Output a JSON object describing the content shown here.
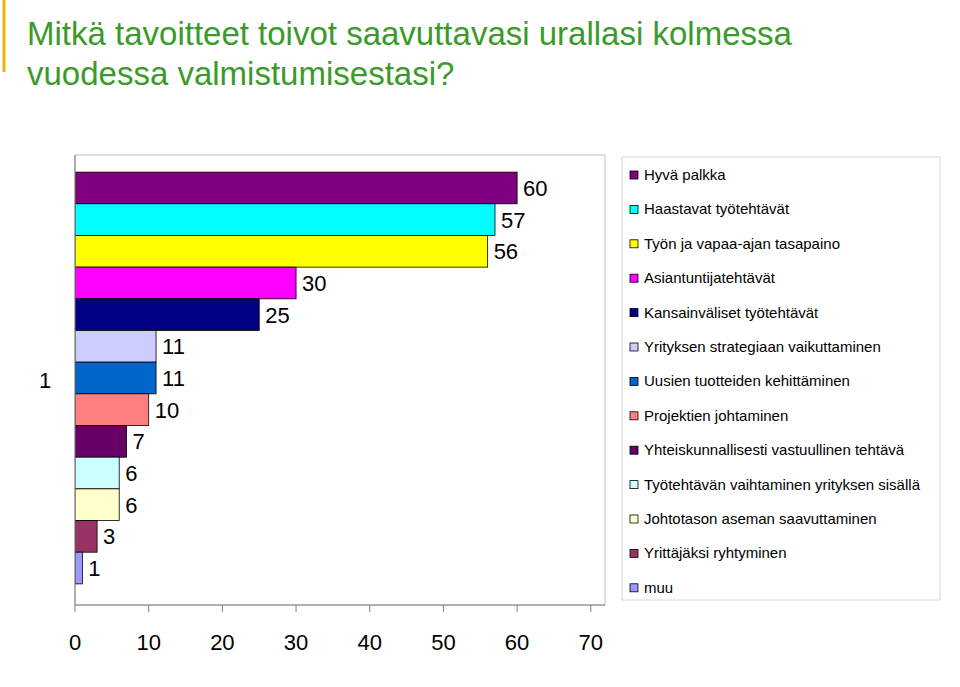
{
  "chart_data": {
    "type": "bar",
    "orientation": "horizontal",
    "title": "Mitkä tavoitteet toivot saavuttavasi urallasi kolmessa vuodessa valmistumisestasi?",
    "categories": [
      "1"
    ],
    "series": [
      {
        "name": "Hyvä palkka",
        "color": "#800080",
        "values": [
          60
        ]
      },
      {
        "name": "Haastavat työtehtävät",
        "color": "#00ffff",
        "values": [
          57
        ]
      },
      {
        "name": "Työn ja vapaa-ajan tasapaino",
        "color": "#ffff00",
        "values": [
          56
        ]
      },
      {
        "name": "Asiantuntijatehtävät",
        "color": "#ff00ff",
        "values": [
          30
        ]
      },
      {
        "name": "Kansainväliset työtehtävät",
        "color": "#000080",
        "values": [
          25
        ]
      },
      {
        "name": "Yrityksen strategiaan vaikuttaminen",
        "color": "#ccccff",
        "values": [
          11
        ]
      },
      {
        "name": "Uusien tuotteiden kehittäminen",
        "color": "#0066cc",
        "values": [
          11
        ]
      },
      {
        "name": "Projektien johtaminen",
        "color": "#ff8080",
        "values": [
          10
        ]
      },
      {
        "name": "Yhteiskunnallisesti vastuullinen tehtävä",
        "color": "#660066",
        "values": [
          7
        ]
      },
      {
        "name": "Työtehtävän vaihtaminen yrityksen sisällä",
        "color": "#ccffff",
        "values": [
          6
        ]
      },
      {
        "name": "Johtotason aseman saavuttaminen",
        "color": "#ffffcc",
        "values": [
          6
        ]
      },
      {
        "name": "Yrittäjäksi ryhtyminen",
        "color": "#993366",
        "values": [
          3
        ]
      },
      {
        "name": "muu",
        "color": "#9999ff",
        "values": [
          1
        ]
      }
    ],
    "xlim": [
      0,
      70
    ],
    "xticks": [
      0,
      10,
      20,
      30,
      40,
      50,
      60,
      70
    ],
    "grid": false,
    "legend": "right",
    "data_labels": true
  }
}
